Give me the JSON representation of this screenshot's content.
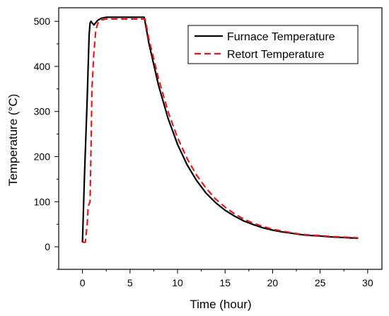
{
  "chart_data": {
    "type": "line",
    "xlabel": "Time (hour)",
    "ylabel": "Temperature (°C)",
    "xlim": [
      -2.5,
      31.5
    ],
    "ylim": [
      -50,
      530
    ],
    "xticks": [
      0,
      5,
      10,
      15,
      20,
      25,
      30
    ],
    "yticks": [
      0,
      100,
      200,
      300,
      400,
      500
    ],
    "grid": false,
    "legend_position": "top-right",
    "series": [
      {
        "name": "Furnace Temperature",
        "color": "#000000",
        "style": "solid",
        "x": [
          0,
          0.2,
          0.5,
          0.7,
          0.8,
          0.9,
          1.0,
          1.2,
          1.4,
          1.6,
          2.0,
          2.5,
          3.0,
          4.0,
          5.0,
          6.0,
          6.5,
          7,
          8,
          9,
          10,
          11,
          12,
          13,
          14,
          15,
          16,
          17,
          18,
          19,
          20,
          21,
          22,
          23,
          24,
          25,
          26,
          27,
          28,
          29
        ],
        "values": [
          10,
          150,
          330,
          470,
          496,
          500,
          497,
          492,
          497,
          502,
          507,
          509,
          509,
          509,
          509,
          509,
          509,
          450,
          358,
          285,
          227,
          182,
          147,
          119,
          98,
          81,
          68,
          57,
          49,
          42,
          37,
          33,
          30,
          27,
          25,
          24,
          22,
          21,
          20,
          19
        ]
      },
      {
        "name": "Retort Temperature",
        "color": "#e41a1c",
        "style": "dashed",
        "x": [
          0,
          0.3,
          0.5,
          0.6,
          0.8,
          0.9,
          1.0,
          1.2,
          1.4,
          1.6,
          1.8,
          2.0,
          2.5,
          3.0,
          4.0,
          5.0,
          6.0,
          6.6,
          7,
          8,
          9,
          10,
          11,
          12,
          13,
          14,
          15,
          16,
          17,
          18,
          19,
          20,
          21,
          22,
          23,
          24,
          25,
          26,
          27,
          28,
          29
        ],
        "values": [
          10,
          10,
          50,
          90,
          100,
          220,
          350,
          430,
          480,
          495,
          500,
          503,
          505,
          505,
          505,
          505,
          505,
          505,
          460,
          373,
          300,
          242,
          196,
          159,
          130,
          106,
          88,
          73,
          61,
          52,
          45,
          39,
          35,
          31,
          28,
          26,
          25,
          23,
          22,
          21,
          20
        ]
      }
    ]
  }
}
